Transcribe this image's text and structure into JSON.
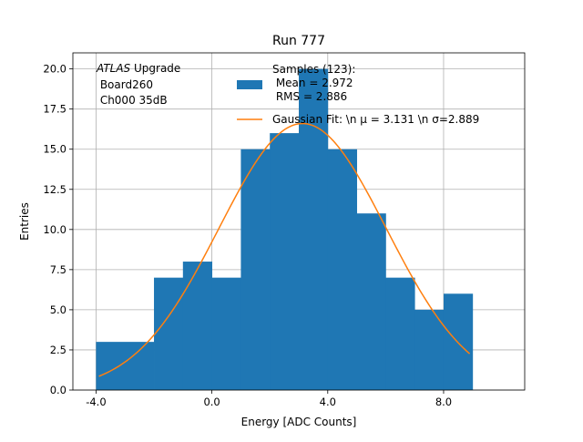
{
  "chart_data": {
    "type": "bar",
    "title": "Run 777",
    "xlabel": "Energy [ADC Counts]",
    "ylabel": "Entries",
    "xlim": [
      -4.8,
      10.8
    ],
    "ylim": [
      0,
      21
    ],
    "grid": true,
    "xticks": [
      -4.0,
      0.0,
      4.0,
      8.0
    ],
    "xtick_labels": [
      "-4.0",
      "0.0",
      "4.0",
      "8.0"
    ],
    "yticks": [
      0,
      2.5,
      5,
      7.5,
      10,
      12.5,
      15,
      17.5,
      20
    ],
    "ytick_labels": [
      "0.0",
      "2.5",
      "5.0",
      "7.5",
      "10.0",
      "12.5",
      "15.0",
      "17.5",
      "20.0"
    ],
    "bins": [
      {
        "x0": -4,
        "x1": -2,
        "count": 3
      },
      {
        "x0": -2,
        "x1": -1,
        "count": 7
      },
      {
        "x0": -1,
        "x1": 0,
        "count": 8
      },
      {
        "x0": 0,
        "x1": 1,
        "count": 7
      },
      {
        "x0": 1,
        "x1": 2,
        "count": 15
      },
      {
        "x0": 2,
        "x1": 3,
        "count": 16
      },
      {
        "x0": 3,
        "x1": 4,
        "count": 20
      },
      {
        "x0": 4,
        "x1": 5,
        "count": 15
      },
      {
        "x0": 5,
        "x1": 6,
        "count": 11
      },
      {
        "x0": 6,
        "x1": 7,
        "count": 7
      },
      {
        "x0": 7,
        "x1": 8,
        "count": 5
      },
      {
        "x0": 8,
        "x1": 9,
        "count": 6
      }
    ],
    "fit": {
      "type": "gaussian",
      "amplitude": 16.6,
      "mu": 3.131,
      "sigma": 2.889,
      "x_range": [
        -3.9,
        8.9
      ]
    },
    "series": [
      {
        "name": "Samples (123):\n Mean = 2.972\n RMS = 2.886",
        "type": "histogram",
        "color": "#1f77b4"
      },
      {
        "name": "Gaussian Fit: \\n μ = 3.131 \\n σ=2.889",
        "type": "line",
        "color": "#ff7f0e"
      }
    ],
    "legend_placement": "top-center",
    "annotation": {
      "italic_part": "ATLAS",
      "rest_first_line": " Upgrade",
      "line2": " Board260",
      "line3": " Ch000 35dB"
    },
    "colors": {
      "bar": "#1f77b4",
      "fit_line": "#ff7f0e",
      "grid": "#b0b0b0"
    }
  }
}
